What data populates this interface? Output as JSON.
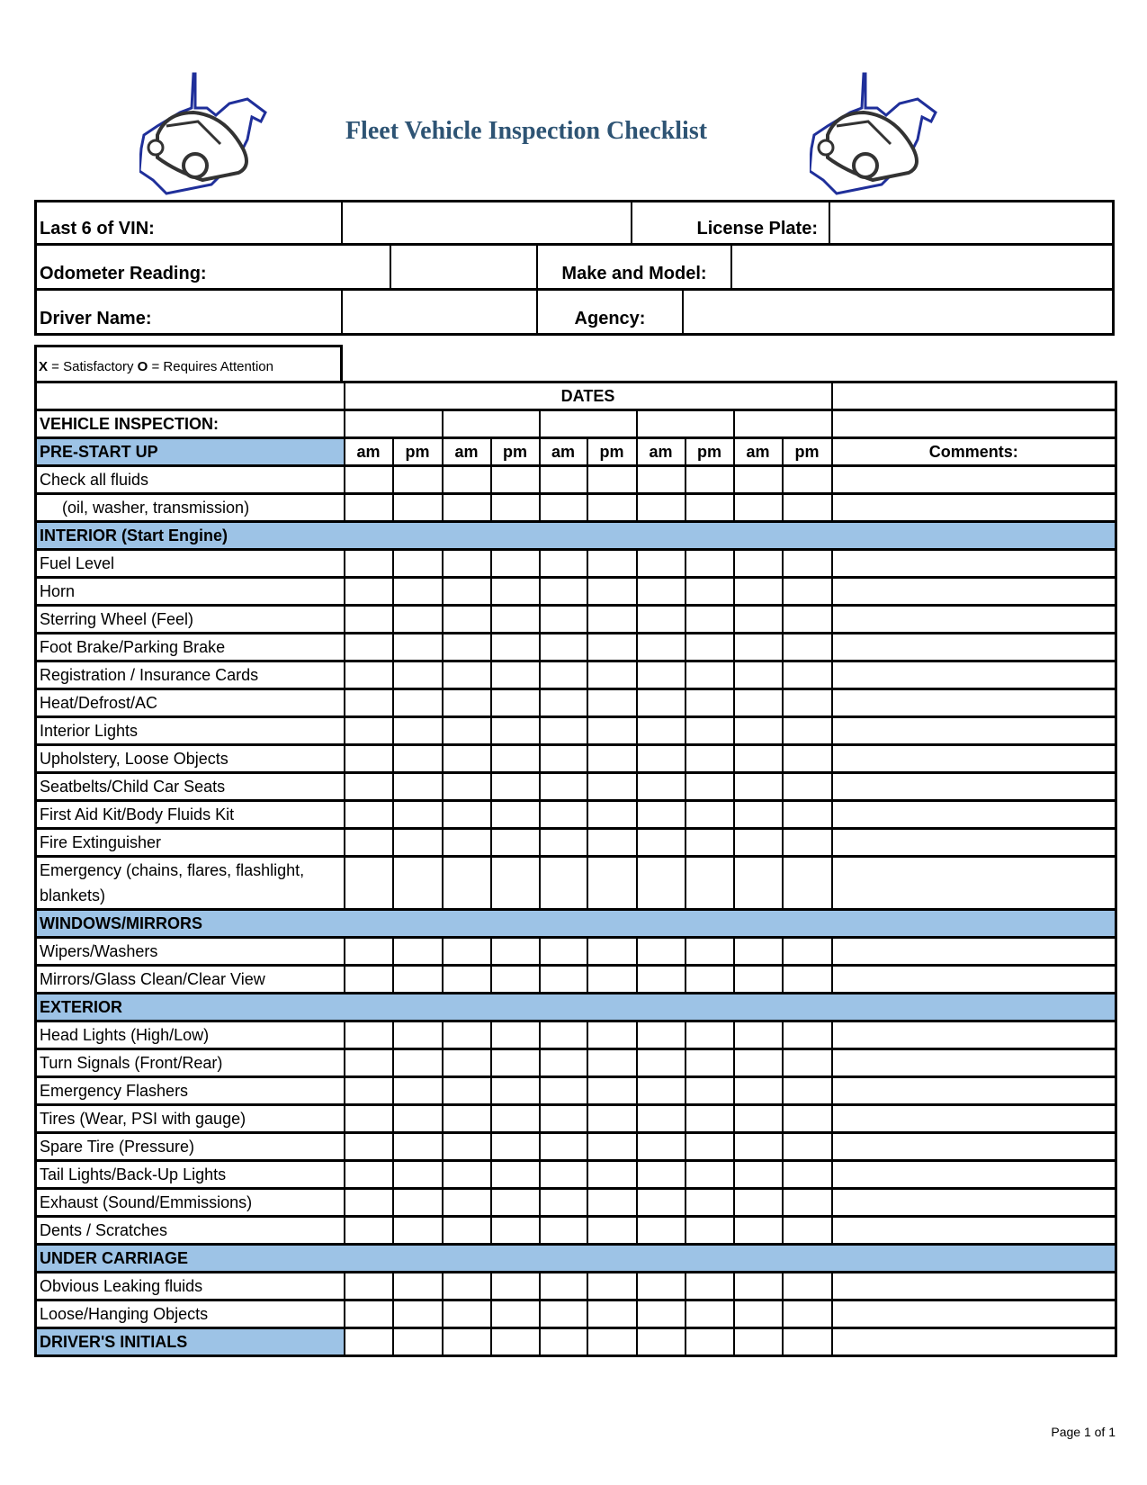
{
  "title": "Fleet Vehicle Inspection Checklist",
  "logo_icon": "car-on-west-virginia-map-icon",
  "colors": {
    "title": "#2e5474",
    "section_fill": "#9dc3e6",
    "logo_outline": "#1f2f9a"
  },
  "vehicle_info": {
    "vin_label": "Last 6 of VIN:",
    "vin_value": "",
    "plate_label": "License Plate:",
    "plate_value": "",
    "odometer_label": "Odometer Reading:",
    "odometer_value": "",
    "make_label": "Make and Model:",
    "make_value": "",
    "driver_label": "Driver Name:",
    "driver_value": "",
    "agency_label": "Agency:",
    "agency_value": ""
  },
  "legend": {
    "x": "X",
    "x_text": " = Satisfactory ",
    "o": "O",
    "o_text": " = Requires Attention"
  },
  "grid": {
    "dates_label": "DATES",
    "vehicle_inspection_label": "VEHICLE INSPECTION:",
    "ampm": [
      "am",
      "pm",
      "am",
      "pm",
      "am",
      "pm",
      "am",
      "pm",
      "am",
      "pm"
    ],
    "comments_label": "Comments:",
    "sections": [
      {
        "header": "PRE-START UP",
        "items": [
          {
            "label": "Check all fluids"
          },
          {
            "label": "(oil, washer, transmission)",
            "indent": true
          }
        ]
      },
      {
        "header": "INTERIOR (Start Engine)",
        "items": [
          {
            "label": "Fuel Level"
          },
          {
            "label": "Horn"
          },
          {
            "label": "Sterring Wheel (Feel)"
          },
          {
            "label": "Foot Brake/Parking Brake"
          },
          {
            "label": "Registration / Insurance Cards"
          },
          {
            "label": "Heat/Defrost/AC"
          },
          {
            "label": "Interior Lights"
          },
          {
            "label": "Upholstery, Loose Objects"
          },
          {
            "label": "Seatbelts/Child Car Seats"
          },
          {
            "label": "First Aid Kit/Body Fluids Kit"
          },
          {
            "label": "Fire Extinguisher"
          },
          {
            "label": "Emergency (chains, flares, flashlight, blankets)"
          }
        ]
      },
      {
        "header": "WINDOWS/MIRRORS",
        "items": [
          {
            "label": "Wipers/Washers"
          },
          {
            "label": "Mirrors/Glass Clean/Clear View"
          }
        ]
      },
      {
        "header": "EXTERIOR",
        "items": [
          {
            "label": "Head Lights (High/Low)"
          },
          {
            "label": "Turn Signals (Front/Rear)"
          },
          {
            "label": "Emergency Flashers"
          },
          {
            "label": "Tires (Wear, PSI with gauge)"
          },
          {
            "label": "Spare Tire (Pressure)"
          },
          {
            "label": "Tail Lights/Back-Up Lights"
          },
          {
            "label": "Exhaust (Sound/Emmissions)"
          },
          {
            "label": "Dents / Scratches"
          }
        ]
      },
      {
        "header": "UNDER CARRIAGE",
        "items": [
          {
            "label": "Obvious Leaking fluids"
          },
          {
            "label": "Loose/Hanging Objects"
          }
        ]
      }
    ],
    "initials_label": "DRIVER'S INITIALS"
  },
  "footer": {
    "page": "Page 1 of 1"
  }
}
